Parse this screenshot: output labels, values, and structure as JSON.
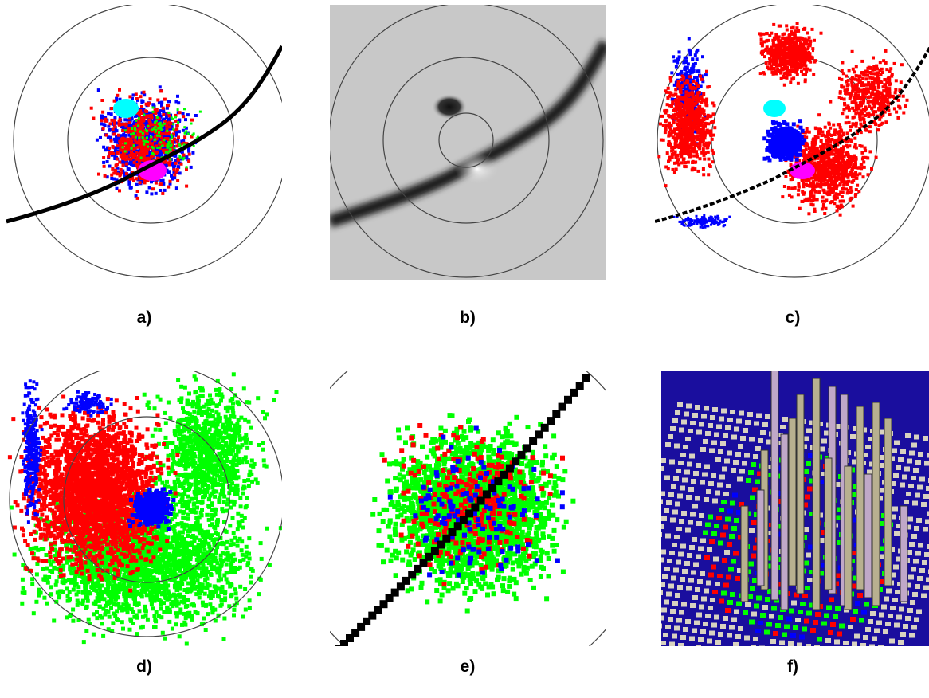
{
  "figure": {
    "panels": [
      {
        "label": "a)",
        "kind": "rings-with-track-and-clusters"
      },
      {
        "label": "b)",
        "kind": "greyscale-field"
      },
      {
        "label": "c)",
        "kind": "rings-with-scatter"
      },
      {
        "label": "d)",
        "kind": "rings-with-large-regions"
      },
      {
        "label": "e)",
        "kind": "zoomed-grid-with-track"
      },
      {
        "label": "f)",
        "kind": "3d-bar-field"
      }
    ],
    "colors": {
      "red": "#ff0000",
      "blue": "#0000ff",
      "green": "#00ff00",
      "cyan": "#00ffff",
      "magenta": "#ff00ff",
      "black": "#000000",
      "grey_bg": "#c8c8c8",
      "navy_bg": "#1a0e9e",
      "tile": "#d8d2c0"
    }
  }
}
